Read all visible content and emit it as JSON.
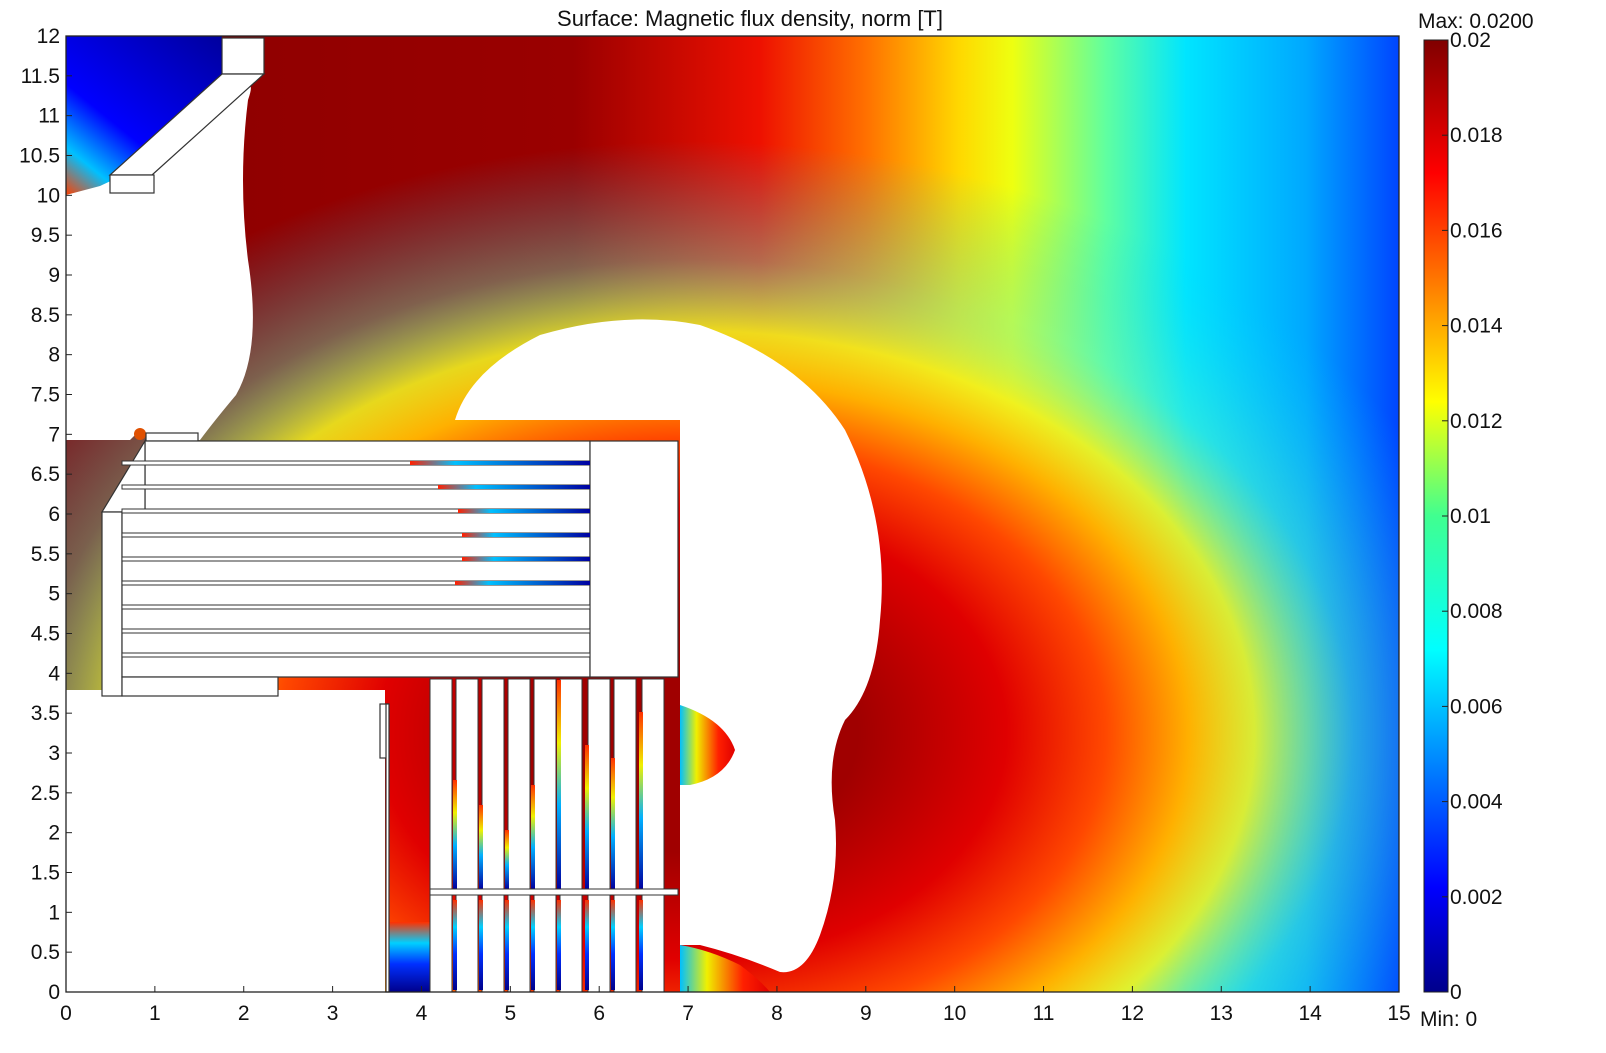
{
  "chart_data": {
    "type": "heatmap",
    "title": "Surface: Magnetic flux density, norm [T]",
    "xlim": [
      0,
      15
    ],
    "ylim": [
      0,
      12
    ],
    "x_ticks": [
      "0",
      "1",
      "2",
      "3",
      "4",
      "5",
      "6",
      "7",
      "8",
      "9",
      "10",
      "11",
      "12",
      "13",
      "14",
      "15"
    ],
    "y_ticks": [
      "0",
      "0.5",
      "1",
      "1.5",
      "2",
      "2.5",
      "3",
      "3.5",
      "4",
      "4.5",
      "5",
      "5.5",
      "6",
      "6.5",
      "7",
      "7.5",
      "8",
      "8.5",
      "9",
      "9.5",
      "10",
      "10.5",
      "11",
      "11.5",
      "12"
    ],
    "colorbar": {
      "colormap": "jet",
      "range": [
        0,
        0.02
      ],
      "max_text": "Max: 0.0200",
      "min_text": "Min: 0",
      "ticks": [
        "0",
        "0.002",
        "0.004",
        "0.006",
        "0.008",
        "0.01",
        "0.012",
        "0.014",
        "0.016",
        "0.018",
        "0.02"
      ]
    },
    "colors": {
      "dark_red": "#8b0000",
      "red": "#e00000",
      "orange": "#ff8000",
      "yellow": "#f5f500",
      "cyan": "#00e5ff",
      "blue": "#0050ff",
      "navy": "#00008b"
    }
  }
}
